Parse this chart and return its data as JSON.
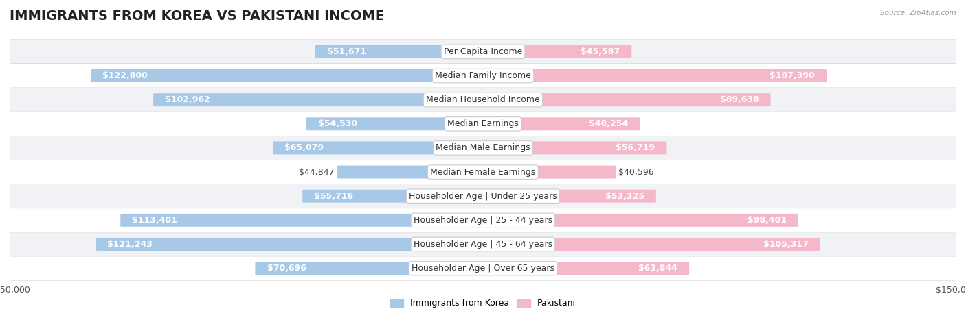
{
  "title": "IMMIGRANTS FROM KOREA VS PAKISTANI INCOME",
  "source": "Source: ZipAtlas.com",
  "categories": [
    "Per Capita Income",
    "Median Family Income",
    "Median Household Income",
    "Median Earnings",
    "Median Male Earnings",
    "Median Female Earnings",
    "Householder Age | Under 25 years",
    "Householder Age | 25 - 44 years",
    "Householder Age | 45 - 64 years",
    "Householder Age | Over 65 years"
  ],
  "korea_values": [
    51671,
    122800,
    102962,
    54530,
    65079,
    44847,
    55716,
    113401,
    121243,
    70696
  ],
  "pakistani_values": [
    45587,
    107390,
    89638,
    48254,
    56719,
    40596,
    53325,
    98401,
    105317,
    63844
  ],
  "korea_labels": [
    "$51,671",
    "$122,800",
    "$102,962",
    "$54,530",
    "$65,079",
    "$44,847",
    "$55,716",
    "$113,401",
    "$121,243",
    "$70,696"
  ],
  "pakistani_labels": [
    "$45,587",
    "$107,390",
    "$89,638",
    "$48,254",
    "$56,719",
    "$40,596",
    "$53,325",
    "$98,401",
    "$105,317",
    "$63,844"
  ],
  "korea_color_light": "#a8c8e8",
  "korea_color_dark": "#5b9bd5",
  "pakistani_color_light": "#f4b8c8",
  "pakistani_color_dark": "#e8527a",
  "max_value": 150000,
  "bg_color": "#ffffff",
  "row_bg_light": "#f0f2f5",
  "row_bg_white": "#ffffff",
  "legend_korea": "Immigrants from Korea",
  "legend_pakistani": "Pakistani",
  "title_fontsize": 14,
  "label_fontsize": 9,
  "axis_fontsize": 9,
  "category_fontsize": 9
}
